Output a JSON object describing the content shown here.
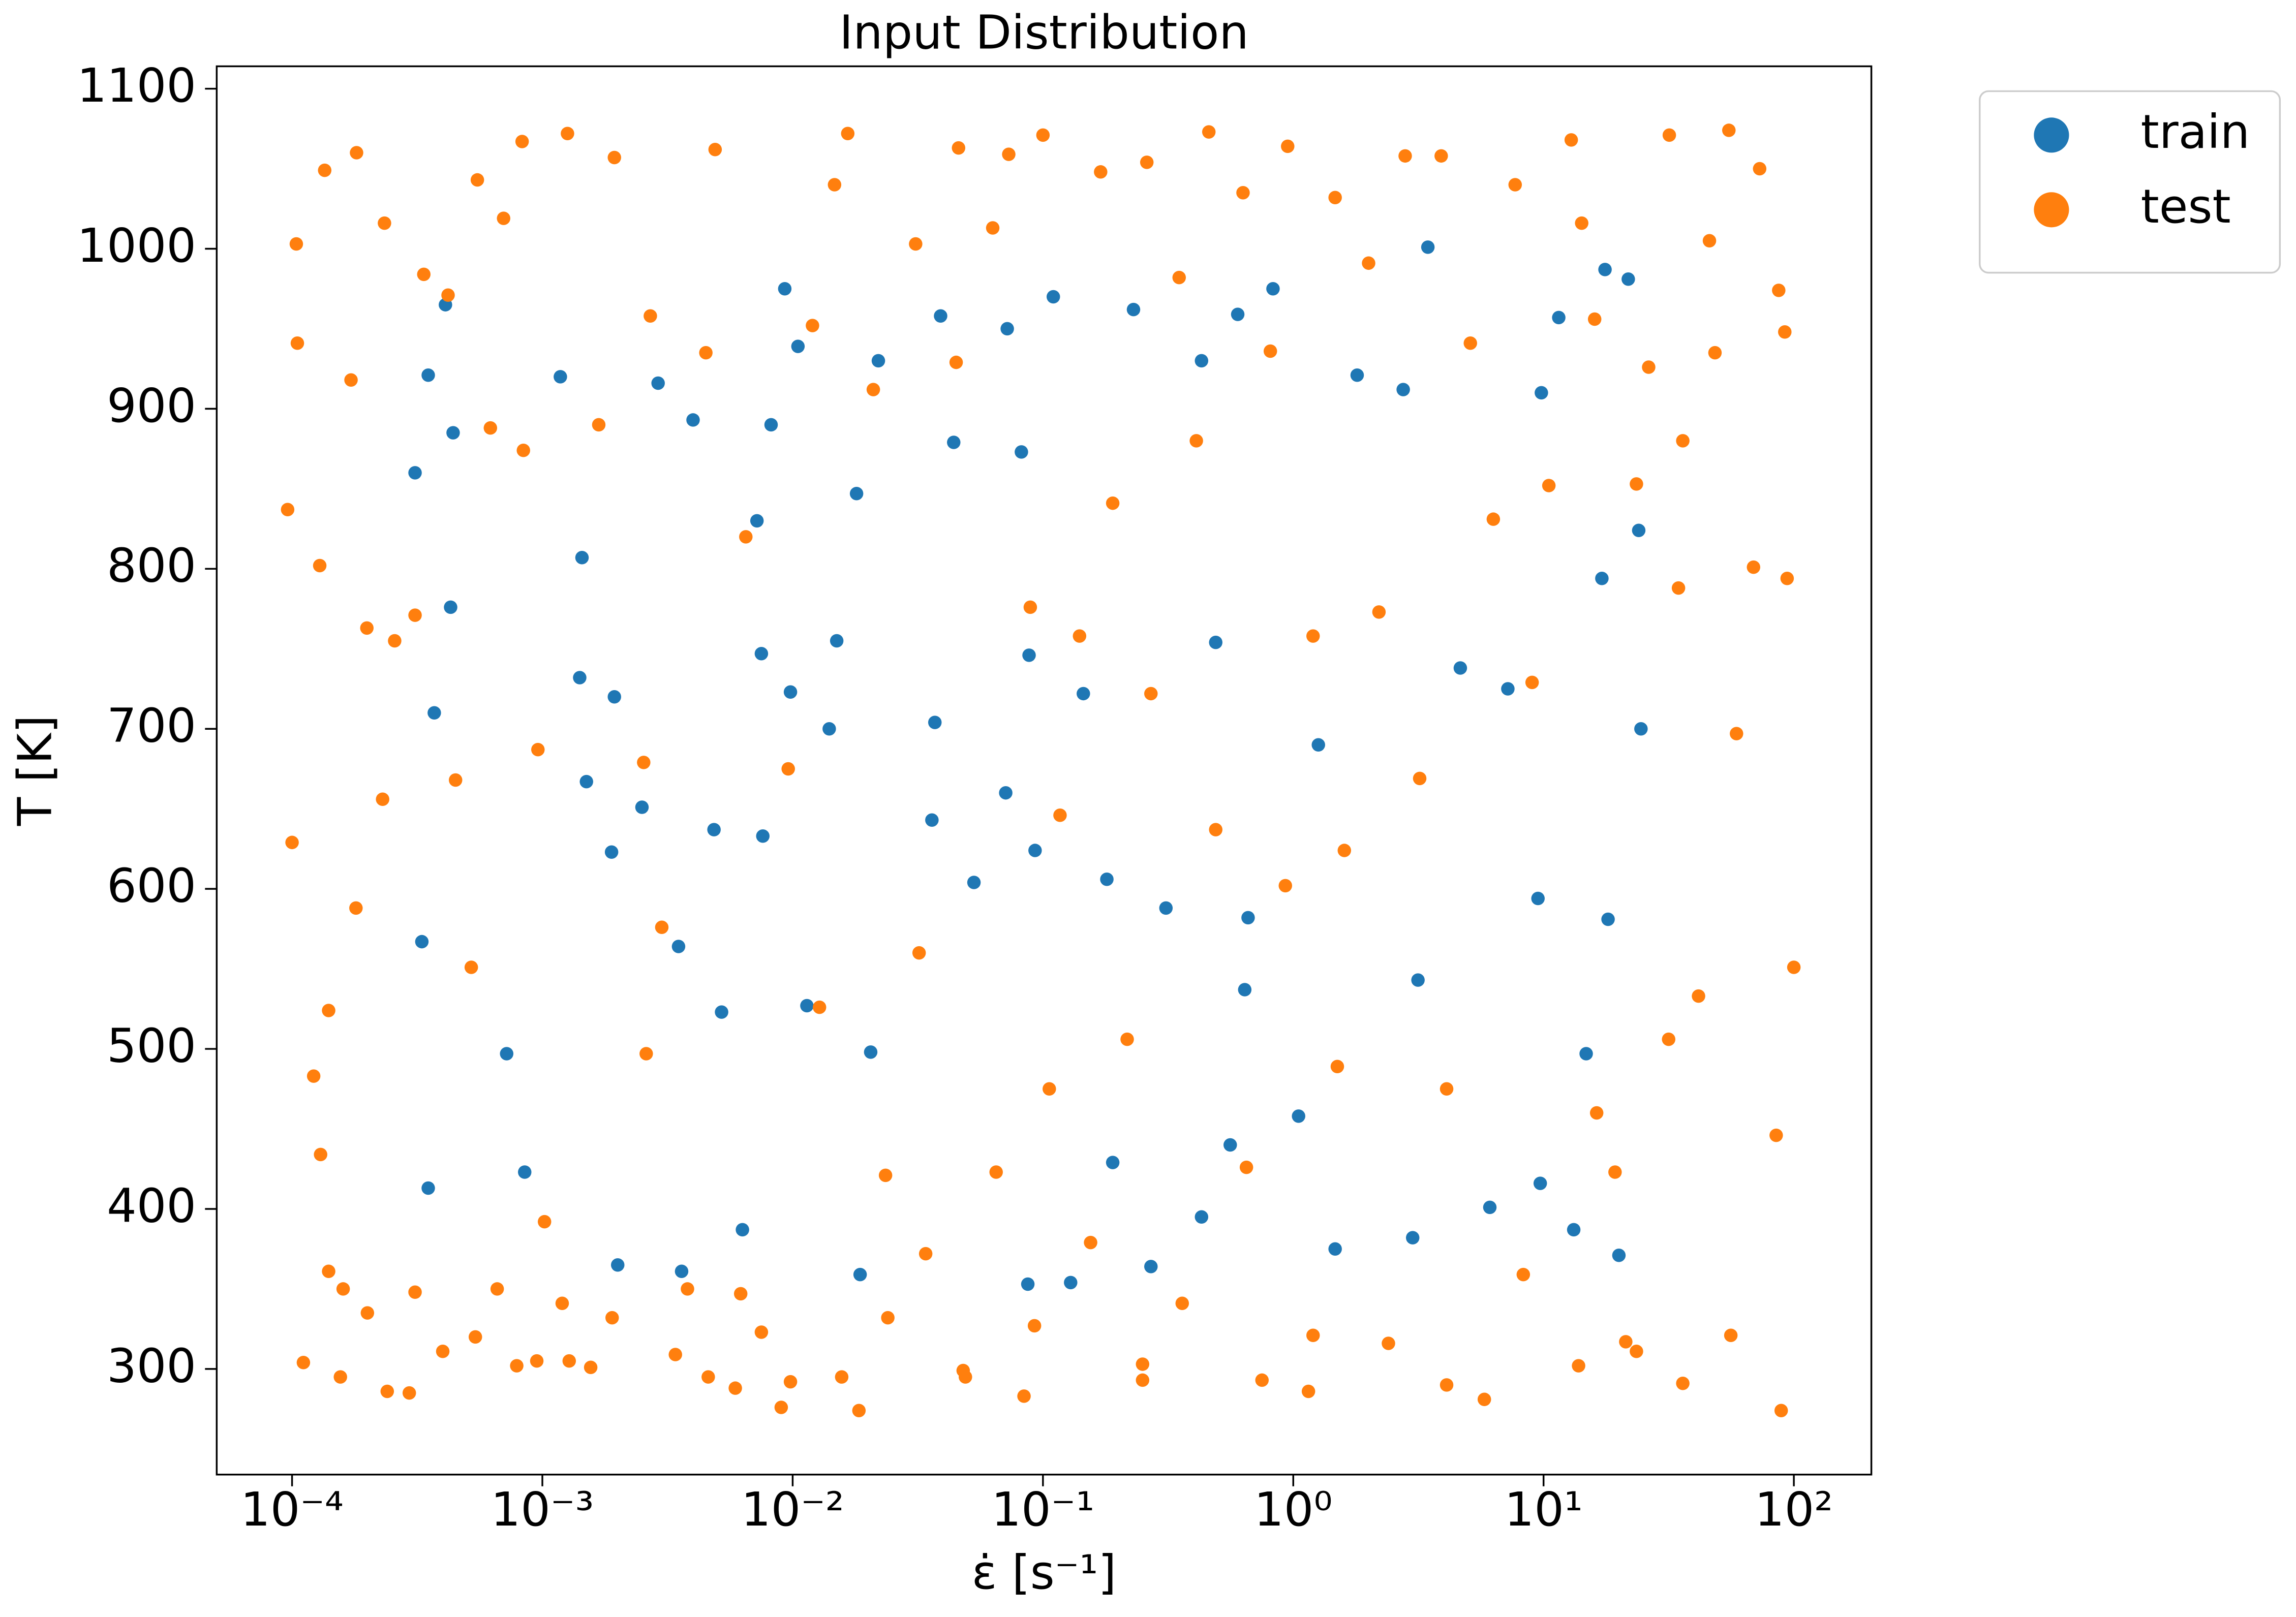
{
  "chart_data": {
    "type": "scatter",
    "title": "Input Distribution",
    "x_label": "ε̇ [s⁻¹]",
    "y_label": "T [K]",
    "x_scale": "log",
    "legend": "outside upper right",
    "grid": false,
    "xlim": [
      5e-05,
      204
    ],
    "ylim": [
      234,
      1114
    ],
    "xticks": [
      {
        "value": 0.0001,
        "label": "10⁻⁴"
      },
      {
        "value": 0.001,
        "label": "10⁻³"
      },
      {
        "value": 0.01,
        "label": "10⁻²"
      },
      {
        "value": 0.1,
        "label": "10⁻¹"
      },
      {
        "value": 1,
        "label": "10⁰"
      },
      {
        "value": 10,
        "label": "10¹"
      },
      {
        "value": 100,
        "label": "10²"
      }
    ],
    "yticks": [
      300,
      400,
      500,
      600,
      700,
      800,
      900,
      1000,
      1100
    ],
    "series": [
      {
        "name": "train",
        "color": "#1f77b4",
        "x": [
          0.00041,
          0.00035,
          0.00031,
          0.00044,
          0.00033,
          0.00043,
          0.00037,
          0.00118,
          0.00144,
          0.00141,
          0.00189,
          0.00194,
          0.0025,
          0.0029,
          0.004,
          0.00485,
          0.0072,
          0.0082,
          0.0093,
          0.0105,
          0.0075,
          0.0098,
          0.015,
          0.018,
          0.022,
          0.037,
          0.039,
          0.044,
          0.072,
          0.082,
          0.088,
          0.11,
          0.145,
          0.23,
          0.43,
          0.49,
          0.6,
          0.83,
          1.26,
          1.8,
          2.75,
          3.45,
          4.65,
          9.8,
          11.5,
          17.6,
          21.8,
          17.1,
          24,
          24.5,
          0.00072,
          0.00035,
          0.00085,
          0.002,
          0.0036,
          0.0063,
          0.0052,
          0.0114,
          0.0205,
          0.0186,
          0.036,
          0.087,
          0.129,
          0.19,
          0.27,
          0.43,
          0.56,
          1.05,
          1.47,
          3.0,
          6.1,
          9.7,
          13.2,
          20,
          18.1,
          9.5,
          14.8,
          7.2,
          3.15,
          0.64,
          0.66,
          0.31,
          0.18,
          0.093,
          0.071,
          0.053,
          0.014,
          0.0076,
          0.0035,
          0.0015
        ],
        "values": [
          965,
          921,
          860,
          885,
          567,
          776,
          710,
          920,
          807,
          732,
          623,
          720,
          651,
          916,
          893,
          637,
          830,
          890,
          975,
          939,
          747,
          723,
          755,
          847,
          930,
          704,
          958,
          879,
          950,
          873,
          746,
          970,
          722,
          962,
          930,
          754,
          959,
          975,
          690,
          921,
          912,
          1001,
          738,
          910,
          957,
          987,
          981,
          794,
          824,
          700,
          497,
          413,
          423,
          365,
          361,
          387,
          523,
          527,
          498,
          359,
          643,
          353,
          354,
          429,
          364,
          395,
          440,
          458,
          375,
          382,
          401,
          416,
          387,
          371,
          581,
          594,
          497,
          725,
          543,
          537,
          582,
          588,
          606,
          624,
          660,
          604,
          700,
          633,
          564,
          667
        ]
      },
      {
        "name": "test",
        "color": "#ff7f0e",
        "x": [
          9.6e-05,
          0.0001,
          0.000104,
          0.000105,
          0.000111,
          0.000135,
          0.000129,
          0.000122,
          0.000181,
          0.000172,
          0.000156,
          0.000199,
          0.000234,
          0.000257,
          0.000294,
          0.000336,
          0.00042,
          0.00045,
          0.00055,
          0.00052,
          0.00062,
          0.0007,
          0.00083,
          0.00084,
          0.00096,
          0.00102,
          0.00126,
          0.00128,
          0.00168,
          0.00194,
          0.0027,
          0.00254,
          0.003,
          0.0034,
          0.0049,
          0.0045,
          0.0065,
          0.0062,
          0.009,
          0.0096,
          0.012,
          0.0147,
          0.0166,
          0.0184,
          0.021,
          0.0235,
          0.031,
          0.032,
          0.046,
          0.045,
          0.048,
          0.063,
          0.073,
          0.084,
          0.089,
          0.1,
          0.117,
          0.14,
          0.17,
          0.19,
          0.26,
          0.25,
          0.27,
          0.35,
          0.41,
          0.46,
          0.49,
          0.63,
          0.81,
          0.95,
          0.93,
          1.2,
          1.15,
          1.47,
          1.6,
          2.0,
          2.2,
          2.8,
          3.2,
          3.9,
          4.1,
          5.1,
          6.3,
          7.7,
          9.0,
          10.5,
          12.9,
          14.2,
          16.0,
          16.3,
          21.3,
          23.5,
          26.3,
          31.8,
          34.6,
          36,
          41.6,
          46,
          48.4,
          55,
          59,
          69,
          73,
          87,
          92,
          100,
          94,
          89,
          85,
          56,
          36,
          31.6,
          23.5,
          19.3,
          13.8,
          8.3,
          5.8,
          4.1,
          2.4,
          1.5,
          1.2,
          0.75,
          0.65,
          0.36,
          0.25,
          0.217,
          0.155,
          0.106,
          0.0925,
          0.065,
          0.049,
          0.034,
          0.024,
          0.0157,
          0.0128,
          0.0098,
          0.0075,
          0.0059,
          0.0046,
          0.0038,
          0.0026,
          0.0019,
          0.00156,
          0.0012,
          0.00095,
          0.00079,
          0.00066,
          0.00054,
          0.0004,
          0.00031,
          0.00024,
          0.0002,
          0.00016,
          0.00014,
          0.00013,
          0.00014,
          0.00018,
          0.00023,
          0.00031
        ],
        "values": [
          837,
          629,
          1003,
          941,
          304,
          1049,
          802,
          483,
          1060,
          918,
          295,
          763,
          1016,
          755,
          285,
          984,
          971,
          668,
          1043,
          551,
          888,
          1019,
          1067,
          874,
          687,
          392,
          1072,
          305,
          890,
          1057,
          958,
          679,
          576,
          309,
          1062,
          935,
          820,
          347,
          276,
          675,
          952,
          1040,
          1072,
          274,
          912,
          421,
          1003,
          560,
          1063,
          929,
          299,
          1013,
          1059,
          283,
          776,
          1071,
          646,
          758,
          1048,
          841,
          1054,
          293,
          722,
          982,
          880,
          1073,
          637,
          1035,
          936,
          1064,
          602,
          758,
          286,
          1032,
          624,
          991,
          773,
          1058,
          669,
          1058,
          290,
          941,
          831,
          1040,
          729,
          852,
          1068,
          1016,
          956,
          460,
          317,
          853,
          926,
          1071,
          788,
          880,
          533,
          1005,
          935,
          1074,
          697,
          801,
          1050,
          974,
          948,
          551,
          794,
          274,
          446,
          321,
          291,
          506,
          311,
          423,
          302,
          359,
          281,
          475,
          316,
          489,
          321,
          293,
          426,
          341,
          303,
          506,
          379,
          475,
          327,
          423,
          295,
          372,
          332,
          295,
          526,
          292,
          323,
          288,
          295,
          350,
          497,
          332,
          301,
          341,
          305,
          302,
          350,
          320,
          311,
          348,
          286,
          335,
          350,
          361,
          434,
          524,
          588,
          656,
          771
        ]
      }
    ]
  }
}
